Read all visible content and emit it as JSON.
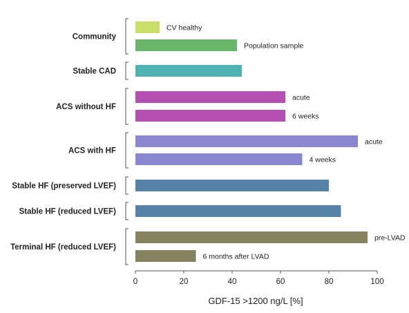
{
  "chart_data": {
    "type": "bar",
    "orientation": "horizontal",
    "xlabel": "GDF-15 >1200 ng/L [%]",
    "xlim": [
      0,
      100
    ],
    "xticks": [
      "0",
      "20",
      "40",
      "60",
      "80",
      "100"
    ],
    "grid": false,
    "groups": [
      {
        "label": "Community",
        "bars": [
          {
            "label": "CV healthy",
            "value": 10,
            "color": "#c8e06a"
          },
          {
            "label": "Population sample",
            "value": 42,
            "color": "#6bb56a"
          }
        ]
      },
      {
        "label": "Stable CAD",
        "bars": [
          {
            "label": "",
            "value": 44,
            "color": "#4fb3b3"
          }
        ]
      },
      {
        "label": "ACS without HF",
        "bars": [
          {
            "label": "acute",
            "value": 62,
            "color": "#b54fb0"
          },
          {
            "label": "6 weeks",
            "value": 62,
            "color": "#b54fb0"
          }
        ]
      },
      {
        "label": "ACS with HF",
        "bars": [
          {
            "label": "acute",
            "value": 92,
            "color": "#8a86d0"
          },
          {
            "label": "4 weeks",
            "value": 69,
            "color": "#8a86d0"
          }
        ]
      },
      {
        "label": "Stable HF (preserved LVEF)",
        "bars": [
          {
            "label": "",
            "value": 80,
            "color": "#5582a6"
          }
        ]
      },
      {
        "label": "Stable HF (reduced LVEF)",
        "bars": [
          {
            "label": "",
            "value": 85,
            "color": "#5582a6"
          }
        ]
      },
      {
        "label": "Terminal HF (reduced LVEF)",
        "bars": [
          {
            "label": "pre-LVAD",
            "value": 96,
            "color": "#858360"
          },
          {
            "label": "6 months after LVAD",
            "value": 25,
            "color": "#858360"
          }
        ]
      }
    ]
  }
}
